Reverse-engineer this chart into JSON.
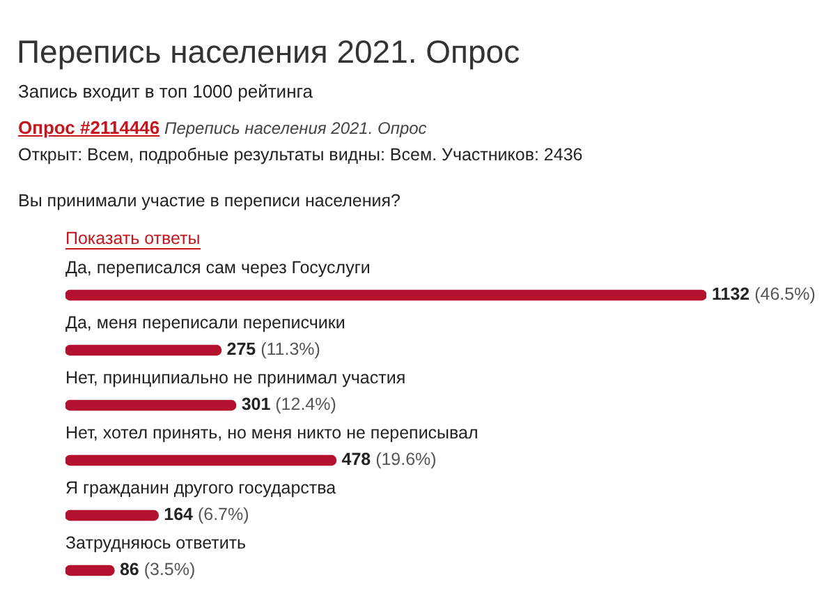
{
  "chart_data": {
    "type": "bar",
    "orientation": "horizontal",
    "title": "Перепись населения 2021. Опрос",
    "subtitle": "Запись входит в топ 1000 рейтинга",
    "annotations": [
      "Опрос #2114446",
      "Перепись населения 2021. Опрос",
      "Открыт: Всем, подробные результаты видны: Всем. Участников: 2436",
      "Вы принимали участие в переписи населения?",
      "Показать ответы"
    ],
    "categories": [
      "Да, переписался сам через Госуслуги",
      "Да, меня переписали переписчики",
      "Нет, принципиально не принимал участия",
      "Нет, хотел принять, но меня никто не переписывал",
      "Я гражданин другого государства",
      "Затрудняюсь ответить"
    ],
    "values": [
      1132,
      275,
      301,
      478,
      164,
      86
    ],
    "value_labels": [
      "1132 (46.5%)",
      "275 (11.3%)",
      "301 (12.4%)",
      "478 (19.6%)",
      "164 (6.7%)",
      "86 (3.5%)"
    ],
    "color": "#b3112e"
  }
}
